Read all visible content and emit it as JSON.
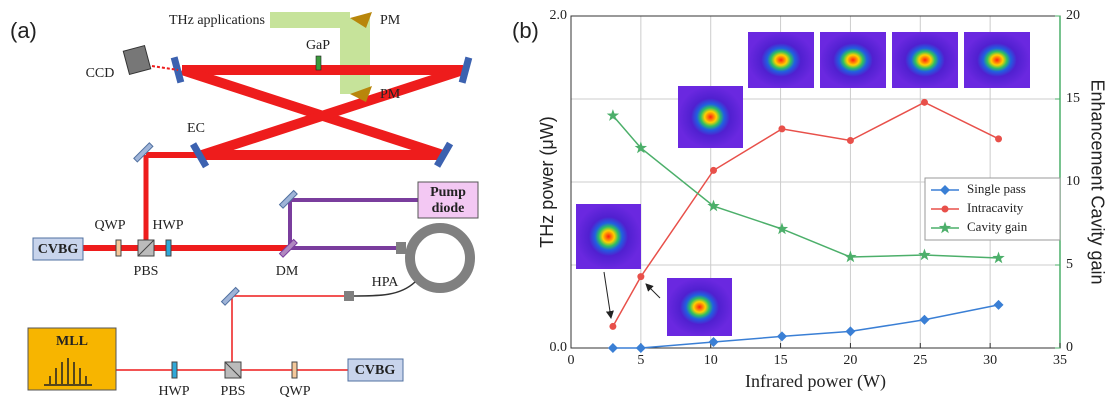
{
  "panels": [
    "(a)",
    "(b)"
  ],
  "diagram": {
    "thz_applications": "THz applications",
    "pm_top": "PM",
    "pm_bottom": "PM",
    "gap": "GaP",
    "ccd": "CCD",
    "ec": "EC",
    "pump_diode": [
      "Pump",
      "diode"
    ],
    "qwp_upper": "QWP",
    "hwp_upper": "HWP",
    "cvbg_upper": "CVBG",
    "pbs_upper": "PBS",
    "dm": "DM",
    "hpa": "HPA",
    "mll": "MLL",
    "hwp_lower": "HWP",
    "pbs_lower": "PBS",
    "qwp_lower": "QWP",
    "cvbg_lower": "CVBG"
  },
  "chart_data": {
    "type": "line",
    "x_label": "Infrared power (W)",
    "y_label": "THz power (μW)",
    "y2_label": "Enhancement Cavity gain",
    "xlim": [
      0,
      35
    ],
    "xticks": [
      0,
      5,
      10,
      15,
      20,
      25,
      30,
      35
    ],
    "ylim": [
      0,
      2
    ],
    "yticks": [
      {
        "value": 0,
        "label": "0.0"
      },
      {
        "value": 2,
        "label": "2.0"
      }
    ],
    "y2lim": [
      0,
      20
    ],
    "y2ticks": [
      0,
      5,
      10,
      15,
      20
    ],
    "grid": true,
    "legend": "right",
    "x": [
      3,
      5,
      10.2,
      15.1,
      20,
      25.3,
      30.6
    ],
    "series": [
      {
        "name": "Single pass",
        "color": "#3a7fd5",
        "marker": "diamond",
        "values": [
          0.0,
          0.0,
          0.036,
          0.07,
          0.1,
          0.17,
          0.26
        ]
      },
      {
        "name": "Intracavity",
        "color": "#e8504a",
        "marker": "circle",
        "values": [
          0.13,
          0.43,
          1.07,
          1.32,
          1.25,
          1.48,
          1.26
        ]
      },
      {
        "name": "Cavity gain",
        "color": "#4caf6a",
        "marker": "star",
        "axis": "y2",
        "values": [
          14.0,
          12.05,
          8.55,
          7.17,
          5.48,
          5.6,
          5.42
        ]
      }
    ]
  }
}
